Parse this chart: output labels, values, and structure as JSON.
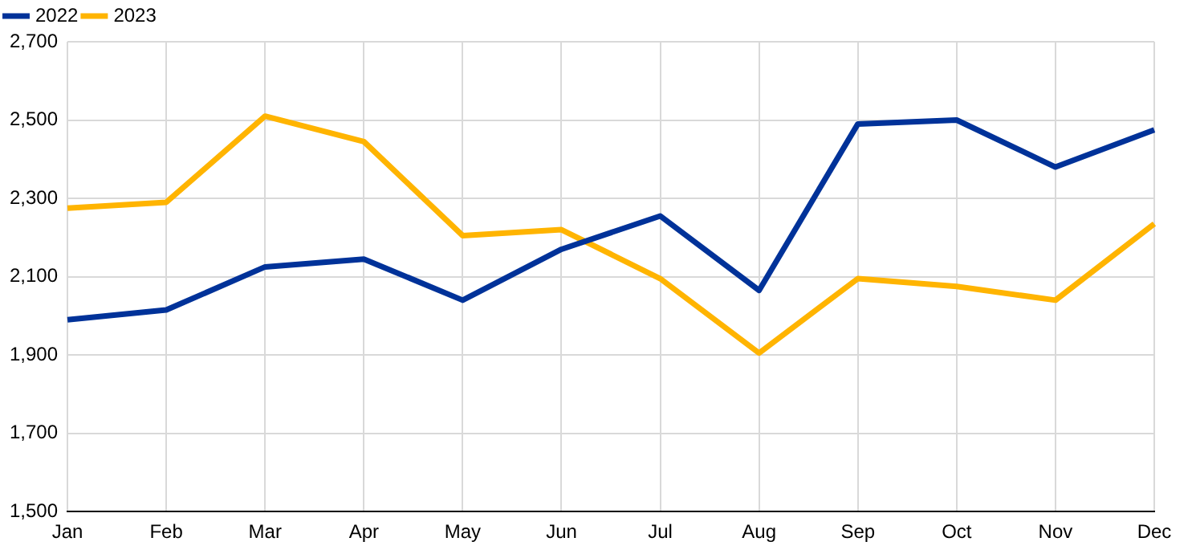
{
  "chart_data": {
    "type": "line",
    "categories": [
      "Jan",
      "Feb",
      "Mar",
      "Apr",
      "May",
      "Jun",
      "Jul",
      "Aug",
      "Sep",
      "Oct",
      "Nov",
      "Dec"
    ],
    "series": [
      {
        "name": "2022",
        "color": "#003299",
        "values": [
          1990,
          2015,
          2125,
          2145,
          2040,
          2170,
          2255,
          2065,
          2490,
          2500,
          2380,
          2475
        ]
      },
      {
        "name": "2023",
        "color": "#ffb400",
        "values": [
          2275,
          2290,
          2510,
          2445,
          2205,
          2220,
          2095,
          1905,
          2095,
          2075,
          2040,
          2235
        ]
      }
    ],
    "ylim": [
      1500,
      2700
    ],
    "yticks": [
      {
        "value": 1500,
        "label": "1,500"
      },
      {
        "value": 1700,
        "label": "1,700"
      },
      {
        "value": 1900,
        "label": "1,900"
      },
      {
        "value": 2100,
        "label": "2,100"
      },
      {
        "value": 2300,
        "label": "2,300"
      },
      {
        "value": 2500,
        "label": "2,500"
      },
      {
        "value": 2700,
        "label": "2,700"
      }
    ],
    "grid": true,
    "legend": "top left",
    "marker": "none",
    "line_style": "solid"
  }
}
